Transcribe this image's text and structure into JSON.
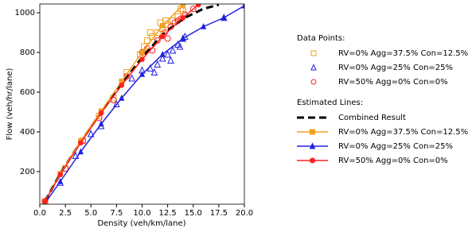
{
  "chart_data": {
    "type": "scatter_line",
    "xlabel": "Density (veh/km/lane)",
    "ylabel": "Flow (veh/hr/lane)",
    "xlim": [
      0,
      20
    ],
    "ylim": [
      36,
      1044
    ],
    "xticks": [
      {
        "value": 0,
        "label": "0.0"
      },
      {
        "value": 2.5,
        "label": "2.5"
      },
      {
        "value": 5,
        "label": "5.0"
      },
      {
        "value": 7.5,
        "label": "7.5"
      },
      {
        "value": 10,
        "label": "10.0"
      },
      {
        "value": 12.5,
        "label": "12.5"
      },
      {
        "value": 15,
        "label": "15.0"
      },
      {
        "value": 17.5,
        "label": "17.5"
      },
      {
        "value": 20,
        "label": "20.0"
      }
    ],
    "yticks": [
      200,
      400,
      600,
      800,
      1000
    ],
    "legend_titles": [
      "Data Points:",
      "Estimated Lines:"
    ],
    "series": [
      {
        "name": "RV=0% Agg=37.5% Con=12.5%",
        "style": "scatter",
        "marker": "square",
        "color": "#f0a020",
        "x": [
          0.5,
          2.5,
          4.2,
          5.8,
          7.2,
          8.5,
          9.8,
          10.2,
          10.5,
          11,
          11.5,
          12,
          12.5,
          13,
          13.5,
          14,
          10.8,
          11.8,
          13.8,
          12.3
        ],
        "values": [
          50,
          215,
          355,
          480,
          570,
          700,
          790,
          830,
          860,
          880,
          900,
          920,
          940,
          960,
          980,
          1010,
          900,
          950,
          1020,
          960
        ]
      },
      {
        "name": "RV=0% Agg=25% Con=25%",
        "style": "scatter",
        "marker": "triangle",
        "color": "#2020e0",
        "x": [
          2,
          3.5,
          5,
          6,
          7.5,
          9,
          10,
          10.8,
          11.5,
          12,
          12.5,
          13,
          13.5,
          14,
          14.2,
          18,
          11.2,
          12.8,
          13.7
        ],
        "values": [
          145,
          280,
          390,
          430,
          540,
          670,
          710,
          720,
          740,
          770,
          790,
          810,
          840,
          870,
          880,
          975,
          700,
          760,
          830
        ]
      },
      {
        "name": "RV=50% Agg=0% Con=0%",
        "style": "scatter",
        "marker": "circle",
        "color": "#ff2020",
        "x": [
          0.5,
          2.5,
          4.2,
          5.8,
          7.2,
          8.5,
          10,
          10.5,
          11.5,
          12.2,
          12.8,
          13.2,
          13.8,
          14.2,
          15,
          13.5,
          11,
          12.5
        ],
        "values": [
          50,
          215,
          355,
          470,
          560,
          680,
          800,
          820,
          860,
          900,
          930,
          950,
          970,
          990,
          1020,
          960,
          810,
          870
        ]
      },
      {
        "name": "Combined Result",
        "style": "line",
        "dash": true,
        "color": "#000000",
        "x": [
          0.5,
          2,
          4,
          6,
          8,
          10,
          12,
          14,
          16,
          17.5
        ],
        "values": [
          50,
          190,
          350,
          500,
          640,
          775,
          890,
          970,
          1020,
          1040
        ]
      },
      {
        "name": "RV=0% Agg=37.5% Con=12.5%",
        "style": "line",
        "marker": "square",
        "color": "#f0a020",
        "x": [
          0.5,
          2,
          4,
          6,
          8,
          10,
          12,
          14
        ],
        "values": [
          50,
          190,
          355,
          505,
          655,
          800,
          935,
          1040
        ]
      },
      {
        "name": "RV=0% Agg=25% Con=25%",
        "style": "line",
        "marker": "triangle",
        "color": "#2020e0",
        "x": [
          0.5,
          2,
          4,
          6,
          8,
          10,
          12,
          14,
          16,
          18,
          20
        ],
        "values": [
          40,
          150,
          300,
          440,
          570,
          690,
          790,
          870,
          930,
          975,
          1035
        ]
      },
      {
        "name": "RV=50% Agg=0% Con=0%",
        "style": "line",
        "marker": "circle",
        "color": "#ff2020",
        "x": [
          0.5,
          2,
          4,
          6,
          8,
          10,
          12,
          14,
          15.5
        ],
        "values": [
          50,
          185,
          345,
          495,
          635,
          765,
          880,
          975,
          1040
        ]
      }
    ]
  }
}
